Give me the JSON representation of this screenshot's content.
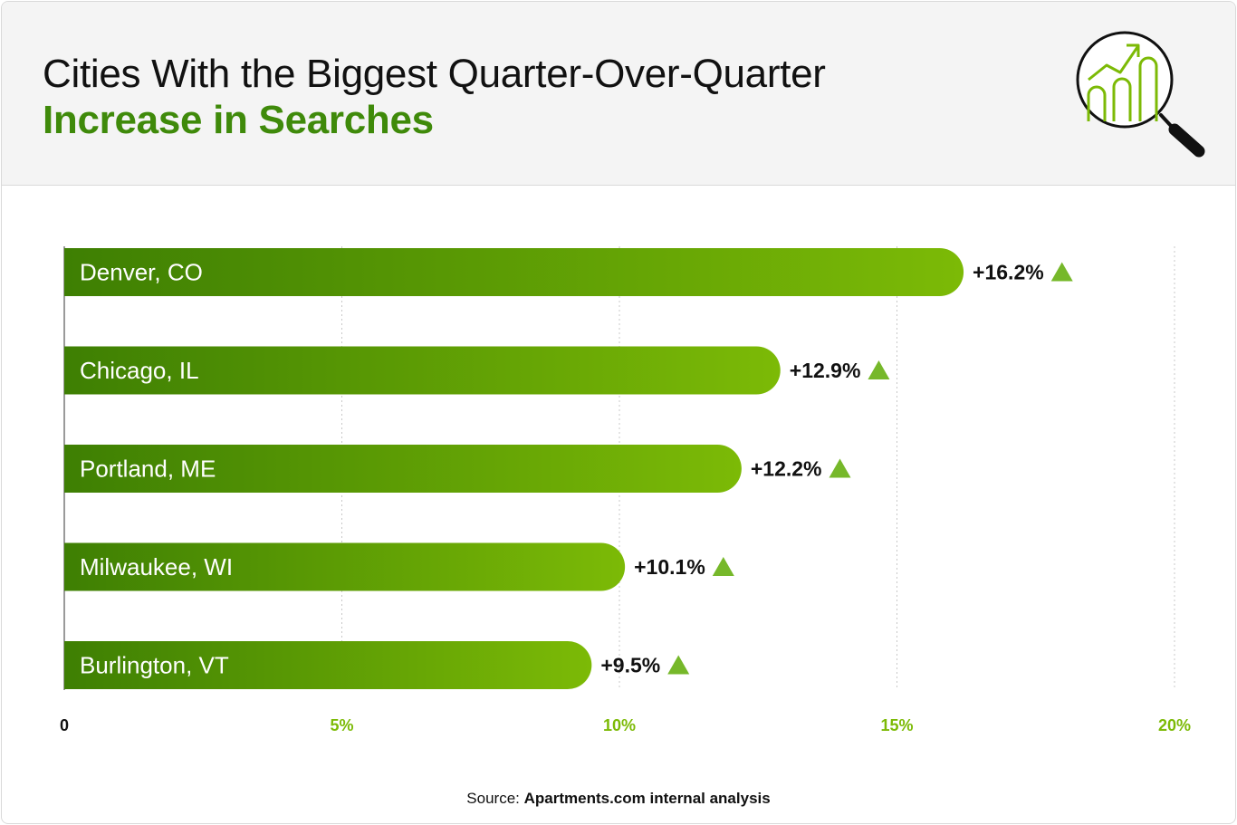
{
  "header": {
    "title_line1": "Cities With the Biggest Quarter-Over-Quarter",
    "title_line2": "Increase in Searches"
  },
  "footer": {
    "source_prefix": "Source:",
    "source_name": "Apartments.com internal analysis"
  },
  "colors": {
    "accent_green": "#3f8a0a",
    "bar_gradient_start": "#3e7f03",
    "bar_gradient_end": "#7cba06",
    "triangle_green": "#76b82a",
    "tick_label_green": "#7cba06"
  },
  "chart_data": {
    "type": "bar",
    "orientation": "horizontal",
    "categories": [
      "Denver, CO",
      "Chicago, IL",
      "Portland, ME",
      "Milwaukee, WI",
      "Burlington, VT"
    ],
    "values": [
      16.2,
      12.9,
      12.2,
      10.1,
      9.5
    ],
    "value_labels": [
      "+16.2%",
      "+12.9%",
      "+12.2%",
      "+10.1%",
      "+9.5%"
    ],
    "xlim": [
      0,
      20
    ],
    "x_ticks": [
      0,
      5,
      10,
      15,
      20
    ],
    "x_tick_labels": [
      "0",
      "5%",
      "10%",
      "15%",
      "20%"
    ],
    "grid": "vertical dotted",
    "title": "Cities With the Biggest Quarter-Over-Quarter Increase in Searches"
  }
}
